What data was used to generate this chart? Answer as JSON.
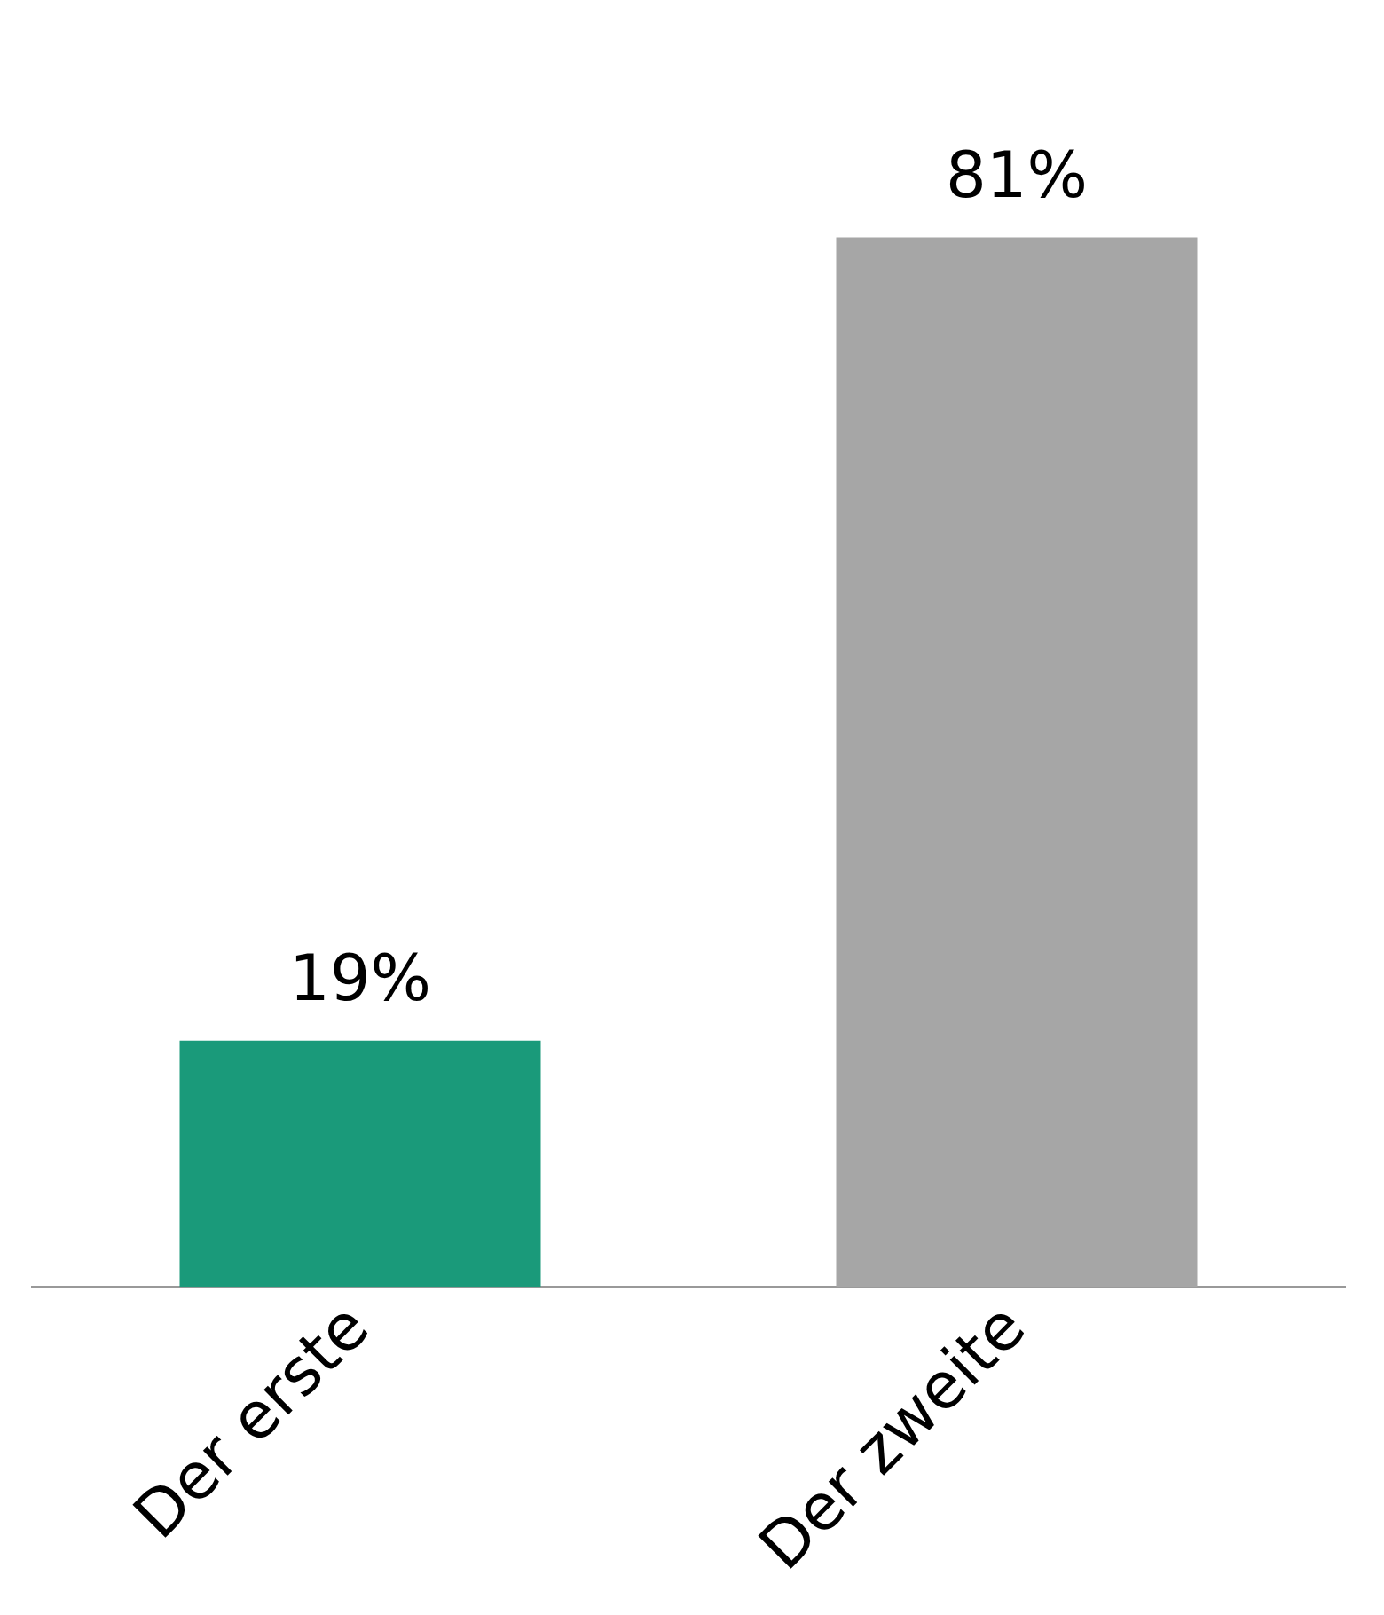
{
  "chart_data": {
    "type": "bar",
    "categories": [
      "Der erste",
      "Der zweite"
    ],
    "values": [
      19,
      81
    ],
    "colors": [
      "#1a9a7a",
      "#a6a6a6"
    ],
    "value_labels": [
      "19%",
      "81%"
    ],
    "grid": false,
    "legend": false
  }
}
